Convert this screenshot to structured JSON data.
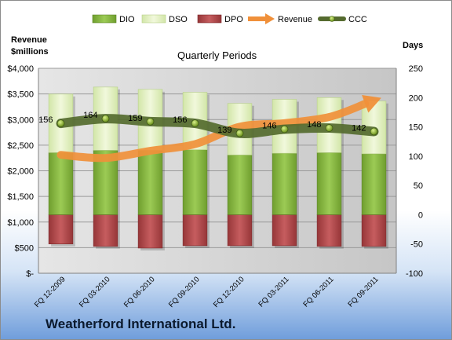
{
  "footer": {
    "company": "Weatherford International Ltd."
  },
  "chart_data": {
    "type": "bar",
    "title": "Quarterly Periods",
    "left_axis_label": [
      "Revenue",
      "$millions"
    ],
    "right_axis_label": "Days",
    "categories": [
      "FQ 12-2009",
      "FQ 03-2010",
      "FQ 06-2010",
      "FQ 09-2010",
      "FQ 12-2010",
      "FQ 03-2011",
      "FQ 06-2011",
      "FQ 09-2011"
    ],
    "left_axis": {
      "min": 0,
      "max": 4000,
      "ticks": [
        "$-",
        "$500",
        "$1,000",
        "$1,500",
        "$2,000",
        "$2,500",
        "$3,000",
        "$3,500",
        "$4,000"
      ],
      "tick_values": [
        0,
        500,
        1000,
        1500,
        2000,
        2500,
        3000,
        3500,
        4000
      ]
    },
    "right_axis": {
      "min": -100,
      "max": 250,
      "ticks": [
        "-100",
        "-50",
        "0",
        "50",
        "100",
        "150",
        "200",
        "250"
      ],
      "tick_values": [
        -100,
        -50,
        0,
        50,
        100,
        150,
        200,
        250
      ]
    },
    "legend": [
      "DIO",
      "DSO",
      "DPO",
      "Revenue",
      "CCC"
    ],
    "legend_position": "top",
    "series": [
      {
        "name": "DIO",
        "axis": "right",
        "kind": "stacked-bar",
        "color": "#8cbb44",
        "values": [
          106,
          110,
          110,
          111,
          102,
          105,
          106,
          104
        ]
      },
      {
        "name": "DSO",
        "axis": "right",
        "kind": "stacked-bar",
        "color": "#e3f0c2",
        "values": [
          100,
          108,
          104,
          98,
          88,
          92,
          94,
          90
        ]
      },
      {
        "name": "DPO",
        "axis": "right",
        "kind": "bar-below-zero",
        "color": "#b84b4d",
        "values": [
          -50,
          -54,
          -57,
          -53,
          -53,
          -53,
          -54,
          -54
        ]
      },
      {
        "name": "Revenue",
        "axis": "left",
        "kind": "line",
        "color": "#f0903a",
        "values": [
          2310,
          2250,
          2390,
          2520,
          2860,
          2930,
          3050,
          3370
        ]
      },
      {
        "name": "CCC",
        "axis": "right",
        "kind": "line",
        "color": "#556b2f",
        "values": [
          156,
          164,
          159,
          156,
          139,
          146,
          148,
          142
        ],
        "labels": [
          "156",
          "164",
          "159",
          "156",
          "139",
          "146",
          "148",
          "142"
        ]
      }
    ]
  }
}
